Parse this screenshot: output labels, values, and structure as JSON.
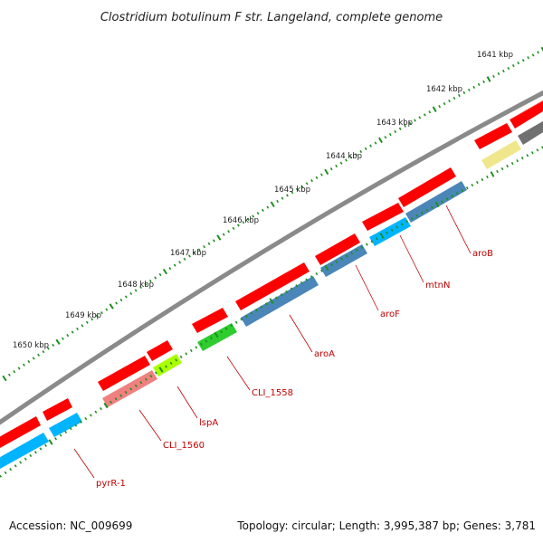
{
  "title": "Clostridium botulinum F str. Langeland, complete genome",
  "footer": {
    "accession": "Accession: NC_009699",
    "topology": "Topology: circular; Length: 3,995,387 bp; Genes: 3,781"
  },
  "ticks": [
    "1641 kbp",
    "1642 kbp",
    "1643 kbp",
    "1644 kbp",
    "1645 kbp",
    "1646 kbp",
    "1647 kbp",
    "1648 kbp",
    "1649 kbp",
    "1650 kbp"
  ],
  "genes": [
    {
      "label": "aroB",
      "color": "#4a86b8"
    },
    {
      "label": "mtnN",
      "color": "#00b4ff"
    },
    {
      "label": "aroF",
      "color": "#4a86b8"
    },
    {
      "label": "aroA",
      "color": "#4a86b8"
    },
    {
      "label": "CLI_1558",
      "color": "#2ecc2e"
    },
    {
      "label": "lspA",
      "color": "#aaff00"
    },
    {
      "label": "CLI_1560",
      "color": "#f08080"
    },
    {
      "label": "pyrR-1",
      "color": "#00b4ff"
    }
  ],
  "colors": {
    "cds_strand": "#ff0000",
    "backbone": "#8a8a8a",
    "tick_dots": "#1f8f1f",
    "label": "#c00000",
    "unlabeled_gray": "#707070",
    "unlabeled_yellow": "#f0e68c"
  }
}
